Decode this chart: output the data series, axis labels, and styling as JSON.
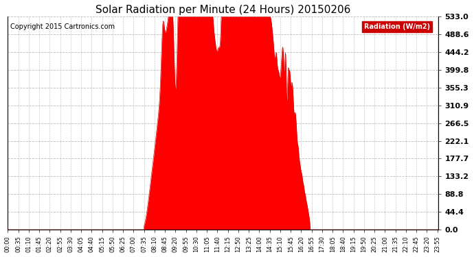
{
  "title": "Solar Radiation per Minute (24 Hours) 20150206",
  "copyright_text": "Copyright 2015 Cartronics.com",
  "legend_label": "Radiation (W/m2)",
  "yticks": [
    0.0,
    44.4,
    88.8,
    133.2,
    177.7,
    222.1,
    266.5,
    310.9,
    355.3,
    399.8,
    444.2,
    488.6,
    533.0
  ],
  "ymax": 533.0,
  "ymin": 0.0,
  "bg_color": "#ffffff",
  "fill_color": "#ff0000",
  "line_color": "#cc0000",
  "grid_color": "#bbbbbb",
  "hline_color": "#ff0000",
  "title_fontsize": 11,
  "copyright_fontsize": 7,
  "tick_fontsize": 6,
  "ytick_fontsize": 8,
  "legend_fontsize": 7,
  "legend_bg": "#cc0000"
}
